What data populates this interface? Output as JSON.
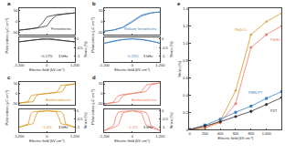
{
  "chart_data": [
    {
      "type": "line",
      "title": "a",
      "xlabel": "Electric field (kV cm⁻¹)",
      "ylabel": "Polarization (μC cm⁻²)",
      "y2label": "Strain (%)",
      "xlim": [
        -1200,
        1200
      ],
      "xticks": [
        {
          "value": -1200,
          "label": "-1,200"
        },
        0,
        {
          "value": 1200,
          "label": "1,200"
        }
      ],
      "ylim": [
        -60,
        60
      ],
      "yticks": [
        -50,
        0,
        50
      ],
      "y2lim": [
        -1.3,
        0.1
      ],
      "y2ticks": [
        -1,
        -0.5,
        0
      ],
      "grid": false,
      "annotations": [
        {
          "text": "Ferroelectric"
        },
        {
          "text": "~0.17%"
        },
        {
          "text": "3 kHz"
        }
      ],
      "x": [
        -1200,
        -800,
        -400,
        0,
        200,
        400,
        800,
        1200,
        800,
        400,
        0,
        -200,
        -400,
        -800,
        -1200
      ],
      "series": [
        {
          "color": "#333333",
          "values": [
            -40,
            -36,
            -30,
            -20,
            10,
            28,
            36,
            40,
            37,
            32,
            22,
            -8,
            -28,
            -36,
            -40
          ]
        },
        {
          "color": "#333333",
          "axis": "y2",
          "values": [
            -0.17,
            -0.1,
            -0.04,
            -0.01,
            0.01,
            -0.04,
            -0.1,
            -0.17,
            -0.1,
            -0.04,
            -0.01,
            0.01,
            -0.04,
            -0.1,
            -0.17
          ]
        }
      ]
    },
    {
      "type": "line",
      "title": "b",
      "xlabel": "Electric field (kV cm⁻¹)",
      "ylabel": "Polarization (μC cm⁻²)",
      "y2label": "Strain (%)",
      "xlim": [
        -1200,
        1200
      ],
      "xticks": [
        {
          "value": -1200,
          "label": "-1,200"
        },
        0,
        {
          "value": 1200,
          "label": "1,200"
        }
      ],
      "ylim": [
        -60,
        60
      ],
      "yticks": [
        -50,
        0,
        50
      ],
      "y2lim": [
        -1.3,
        0.1
      ],
      "y2ticks": [
        -1,
        -0.5,
        0
      ],
      "grid": false,
      "annotations": [
        {
          "text": "Relaxor ferroelectric"
        },
        {
          "text": "~0.25%"
        },
        {
          "text": "3 kHz"
        }
      ],
      "x": [
        -1200,
        -800,
        -400,
        0,
        400,
        800,
        1200,
        800,
        400,
        0,
        -400,
        -800,
        -1200
      ],
      "series": [
        {
          "color": "#3a7fc0",
          "values": [
            -45,
            -40,
            -28,
            -3,
            26,
            39,
            45,
            41,
            30,
            3,
            -26,
            -39,
            -45
          ]
        },
        {
          "color": "#3a7fc0",
          "axis": "y2",
          "values": [
            -0.25,
            -0.14,
            -0.04,
            0,
            -0.03,
            -0.12,
            -0.25,
            -0.13,
            -0.04,
            0,
            -0.03,
            -0.12,
            -0.25
          ]
        }
      ]
    },
    {
      "type": "line",
      "title": "c",
      "xlabel": "Electric field (kV cm⁻¹)",
      "ylabel": "Polarization (μC cm⁻²)",
      "y2label": "Strain (%)",
      "xlim": [
        -1200,
        1200
      ],
      "xticks": [
        {
          "value": -1200,
          "label": "-1,200"
        },
        0,
        {
          "value": 1200,
          "label": "1,200"
        }
      ],
      "ylim": [
        -60,
        60
      ],
      "yticks": [
        -50,
        0,
        50
      ],
      "y2lim": [
        -1.3,
        0.1
      ],
      "y2ticks": [
        -1,
        -0.5,
        0
      ],
      "grid": false,
      "annotations": [
        {
          "text": "Antiferroelectric"
        },
        {
          "text": "~1.0%"
        },
        {
          "text": "3 kHz"
        }
      ],
      "x": [
        -1200,
        -800,
        -600,
        -500,
        -400,
        0,
        400,
        600,
        700,
        800,
        1200,
        800,
        600,
        500,
        400,
        0,
        -400,
        -600,
        -700,
        -800,
        -1200
      ],
      "series": [
        {
          "color": "#d9961a",
          "values": [
            -50,
            -47,
            -43,
            -20,
            -6,
            0,
            4,
            8,
            15,
            42,
            50,
            47,
            43,
            20,
            6,
            0,
            -4,
            -8,
            -15,
            -42,
            -50
          ]
        },
        {
          "color": "#d9961a",
          "axis": "y2",
          "values": [
            -1.0,
            -0.88,
            -0.78,
            -0.4,
            -0.06,
            0,
            -0.02,
            -0.05,
            -0.2,
            -0.8,
            -1.0,
            -0.88,
            -0.78,
            -0.4,
            -0.06,
            0,
            -0.02,
            -0.05,
            -0.2,
            -0.8,
            -1.0
          ]
        }
      ]
    },
    {
      "type": "line",
      "title": "d",
      "xlabel": "Electric field (kV cm⁻¹)",
      "ylabel": "Polarization (μC cm⁻²)",
      "y2label": "Strain (%)",
      "xlim": [
        -1200,
        1200
      ],
      "xticks": [
        {
          "value": -1200,
          "label": "-1,200"
        },
        0,
        {
          "value": 1200,
          "label": "1,200"
        }
      ],
      "ylim": [
        -60,
        60
      ],
      "yticks": [
        -50,
        0,
        50
      ],
      "y2lim": [
        -1.3,
        0.1
      ],
      "y2ticks": [
        -1,
        -0.5,
        0
      ],
      "grid": false,
      "annotations": [
        {
          "text": "Antiferroelectric"
        },
        {
          "text": "~1.2%"
        },
        {
          "text": "3 kHz"
        }
      ],
      "x": [
        -1200,
        -800,
        -600,
        -500,
        -400,
        0,
        400,
        600,
        700,
        800,
        1200,
        800,
        600,
        500,
        400,
        0,
        -400,
        -600,
        -700,
        -800,
        -1200
      ],
      "series": [
        {
          "color": "#f07a6a",
          "values": [
            -55,
            -50,
            -44,
            -28,
            -10,
            0,
            5,
            12,
            25,
            45,
            55,
            50,
            44,
            28,
            10,
            0,
            -5,
            -12,
            -25,
            -45,
            -55
          ]
        },
        {
          "color": "#f07a6a",
          "axis": "y2",
          "values": [
            -1.2,
            -1.02,
            -0.88,
            -0.55,
            -0.12,
            0,
            -0.03,
            -0.1,
            -0.35,
            -0.9,
            -1.2,
            -1.02,
            -0.88,
            -0.55,
            -0.12,
            0,
            -0.03,
            -0.1,
            -0.35,
            -0.9,
            -1.2
          ]
        }
      ]
    },
    {
      "type": "line",
      "title": "e",
      "xlabel": "Electric field (kV cm⁻¹)",
      "ylabel": "Strain (%)",
      "xlim": [
        0,
        1200
      ],
      "xticks": [
        0,
        200,
        400,
        600,
        800,
        {
          "value": 1000,
          "label": "1,000"
        },
        {
          "value": 1200,
          "label": "1,200"
        }
      ],
      "ylim": [
        0,
        1.4
      ],
      "yticks": [
        0,
        0.2,
        0.4,
        0.6,
        0.8,
        {
          "value": 1,
          "label": "1.0"
        },
        1.2,
        1.4
      ],
      "grid": false,
      "x": [
        0,
        200,
        400,
        600,
        800,
        1000,
        1200
      ],
      "series": [
        {
          "name": "PbZrO₃",
          "color": "#d9961a",
          "marker": "triangle-up",
          "values": [
            0,
            0.02,
            0.1,
            0.45,
            1.1,
            1.25,
            1.35
          ]
        },
        {
          "name": "PbHfO₃",
          "color": "#f07a6a",
          "marker": "circle",
          "values": [
            0,
            0.02,
            0.08,
            0.3,
            0.95,
            1.1,
            1.2
          ]
        },
        {
          "name": "PMN-PT",
          "color": "#3a7fc0",
          "marker": "square",
          "values": [
            0,
            0.05,
            0.12,
            0.2,
            0.27,
            0.36,
            0.44
          ]
        },
        {
          "name": "PZT",
          "color": "#333333",
          "marker": "diamond",
          "values": [
            0,
            0.04,
            0.09,
            0.15,
            0.21,
            0.29,
            0.37
          ]
        }
      ]
    }
  ]
}
